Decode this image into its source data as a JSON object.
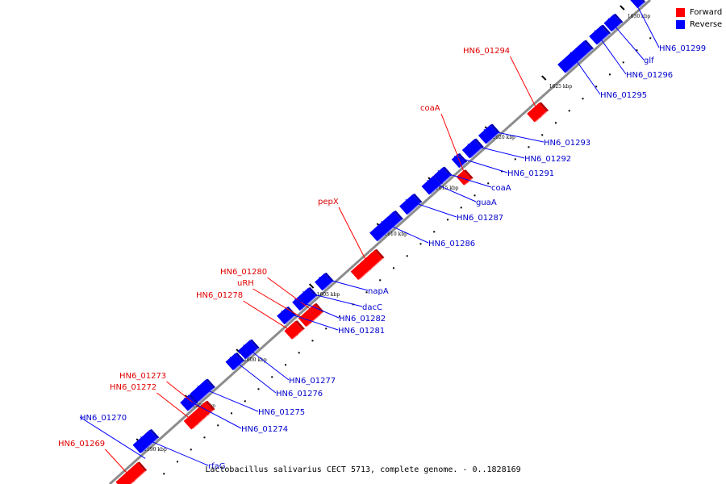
{
  "legend": {
    "forward_label": "Forward",
    "reverse_label": "Reverse"
  },
  "colors": {
    "forward": "#ff0000",
    "reverse": "#0000ff",
    "backbone": "#8c8c8c",
    "forward_text": "#e00000",
    "reverse_text": "#0000cc"
  },
  "caption": "Lactobacillus salivarius CECT 5713, complete genome. - 0..1828169",
  "ticks": [
    "1590 kbp",
    "1595 kbp",
    "1600 kbp",
    "1605 kbp",
    "1610 kbp",
    "1615 kbp",
    "1620 kbp",
    "1625 kbp",
    "1630 kbp"
  ],
  "forward_genes": [
    "HN6_01269",
    "HN6_01272",
    "HN6_01273",
    "HN6_01278",
    "uRH",
    "HN6_01280",
    "pepX",
    "coaA",
    "HN6_01294"
  ],
  "reverse_genes": [
    "HN6_01270",
    "rfaG",
    "HN6_01274",
    "HN6_01275",
    "HN6_01276",
    "HN6_01277",
    "HN6_01281",
    "HN6_01282",
    "dacC",
    "napA",
    "HN6_01286",
    "HN6_01287",
    "guaA",
    "coaA",
    "HN6_01291",
    "HN6_01292",
    "HN6_01293",
    "HN6_01295",
    "HN6_01296",
    "glf",
    "HN6_01299"
  ]
}
